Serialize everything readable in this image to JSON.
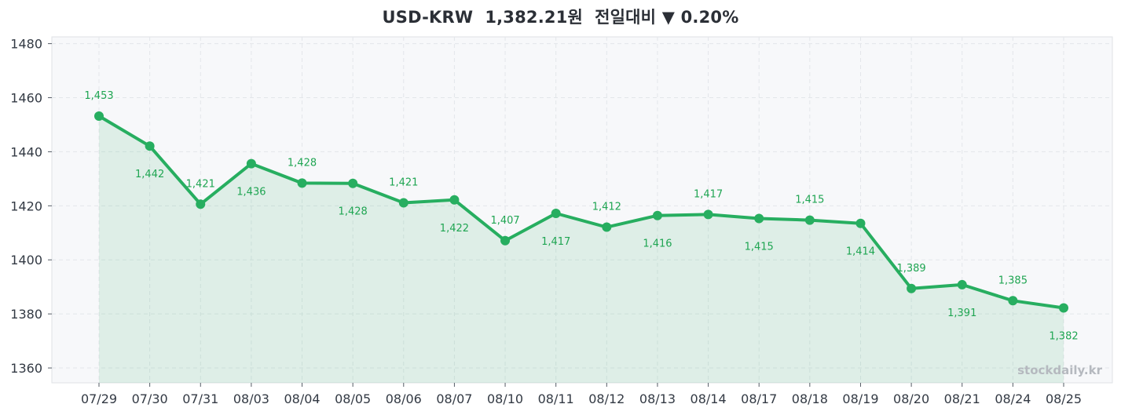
{
  "header": {
    "pair": "USD-KRW",
    "price": "1,382.21원",
    "change_label": "전일대비",
    "change_arrow": "▼",
    "change_pct": "0.20%"
  },
  "watermark": "stockdaily.kr",
  "colors": {
    "line": "#27ae60",
    "fill": "#27ae60",
    "label": "#1fa552",
    "plot_bg": "#f7f8fa",
    "grid": "#e3e6ea"
  },
  "chart_data": {
    "type": "line",
    "title": "USD-KRW 1,382.21원 전일대비 ▼ 0.20%",
    "xlabel": "",
    "ylabel": "",
    "categories": [
      "07/29",
      "07/30",
      "07/31",
      "08/03",
      "08/04",
      "08/05",
      "08/06",
      "08/07",
      "08/10",
      "08/11",
      "08/12",
      "08/13",
      "08/14",
      "08/17",
      "08/18",
      "08/19",
      "08/20",
      "08/21",
      "08/24",
      "08/25"
    ],
    "values": [
      1453.2,
      1442.1,
      1420.6,
      1435.6,
      1428.4,
      1428.3,
      1421.1,
      1422.2,
      1407.1,
      1417.2,
      1412.1,
      1416.4,
      1416.8,
      1415.3,
      1414.7,
      1413.5,
      1389.4,
      1390.8,
      1384.9,
      1382.21
    ],
    "data_labels": [
      "1,453",
      "1,442",
      "1,421",
      "1,436",
      "1,428",
      "1,428",
      "1,421",
      "1,422",
      "1,407",
      "1,417",
      "1,412",
      "1,416",
      "1,417",
      "1,415",
      "1,415",
      "1,414",
      "1,389",
      "1,391",
      "1,385",
      "1,382"
    ],
    "label_position": [
      "above",
      "below",
      "above",
      "below",
      "above",
      "below",
      "above",
      "below",
      "above",
      "below",
      "above",
      "below",
      "above",
      "below",
      "above",
      "below",
      "above",
      "below",
      "above",
      "below"
    ],
    "yticks": [
      1360,
      1380,
      1400,
      1420,
      1440,
      1460,
      1480
    ],
    "ylim": [
      1354.5,
      1482.5
    ],
    "grid": true,
    "area_fill": true,
    "legend": "none"
  }
}
